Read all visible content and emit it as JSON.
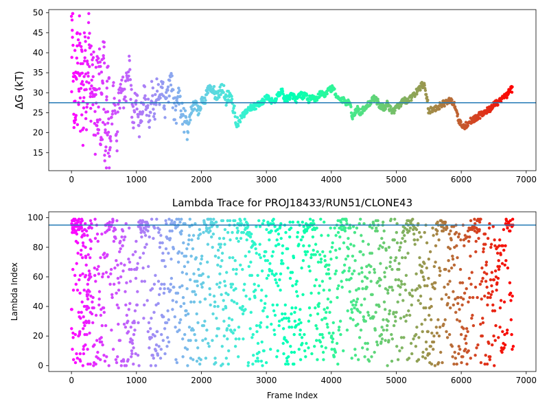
{
  "chart_data": [
    {
      "type": "scatter",
      "title": "",
      "xlabel": "",
      "ylabel": "ΔG (kT)",
      "xlim": [
        -350,
        7150
      ],
      "ylim": [
        10.5,
        50.8
      ],
      "xticks": [
        0,
        1000,
        2000,
        3000,
        4000,
        5000,
        6000,
        7000
      ],
      "yticks": [
        15,
        20,
        25,
        30,
        35,
        40,
        45,
        50
      ],
      "hline": 27.5,
      "grid": false,
      "legend": "none",
      "color_encoding": "frame index on rainbow colormap (red early to violet late)",
      "trace_points": [
        [
          0,
          40
        ],
        [
          20,
          48
        ],
        [
          40,
          20
        ],
        [
          60,
          33
        ],
        [
          80,
          38
        ],
        [
          100,
          30
        ],
        [
          120,
          42
        ],
        [
          140,
          28
        ],
        [
          160,
          33
        ],
        [
          180,
          22
        ],
        [
          200,
          36
        ],
        [
          230,
          30
        ],
        [
          260,
          43
        ],
        [
          290,
          28
        ],
        [
          320,
          34
        ],
        [
          360,
          24
        ],
        [
          400,
          32
        ],
        [
          440,
          29
        ],
        [
          480,
          27
        ],
        [
          500,
          36
        ],
        [
          520,
          15
        ],
        [
          560,
          27
        ],
        [
          600,
          17
        ],
        [
          650,
          32
        ],
        [
          700,
          16
        ],
        [
          720,
          27
        ],
        [
          780,
          33
        ],
        [
          820,
          27
        ],
        [
          860,
          34
        ],
        [
          890,
          36
        ],
        [
          920,
          28
        ],
        [
          960,
          24
        ],
        [
          1000,
          30
        ],
        [
          1040,
          22
        ],
        [
          1080,
          26
        ],
        [
          1120,
          32
        ],
        [
          1160,
          26
        ],
        [
          1200,
          24
        ],
        [
          1240,
          30
        ],
        [
          1280,
          25
        ],
        [
          1320,
          31
        ],
        [
          1360,
          27
        ],
        [
          1400,
          31
        ],
        [
          1440,
          26
        ],
        [
          1480,
          30
        ],
        [
          1540,
          32
        ],
        [
          1580,
          26
        ],
        [
          1620,
          25
        ],
        [
          1660,
          29
        ],
        [
          1700,
          25
        ],
        [
          1740,
          23
        ],
        [
          1780,
          20.5
        ],
        [
          1840,
          25
        ],
        [
          1900,
          27
        ],
        [
          1960,
          25
        ],
        [
          2000,
          28
        ],
        [
          2040,
          28
        ],
        [
          2080,
          29.5
        ],
        [
          2120,
          31
        ],
        [
          2180,
          30.5
        ],
        [
          2240,
          29
        ],
        [
          2300,
          30.5
        ],
        [
          2340,
          31
        ],
        [
          2380,
          28
        ],
        [
          2420,
          30
        ],
        [
          2460,
          28
        ],
        [
          2500,
          26
        ],
        [
          2540,
          22
        ],
        [
          2580,
          23
        ],
        [
          2650,
          24.5
        ],
        [
          2720,
          26
        ],
        [
          2800,
          26.5
        ],
        [
          2880,
          27
        ],
        [
          2960,
          28
        ],
        [
          3000,
          29
        ],
        [
          3060,
          28
        ],
        [
          3120,
          28
        ],
        [
          3180,
          29.5
        ],
        [
          3240,
          30.5
        ],
        [
          3280,
          28.5
        ],
        [
          3340,
          28.5
        ],
        [
          3400,
          29.5
        ],
        [
          3460,
          28
        ],
        [
          3520,
          30
        ],
        [
          3560,
          29
        ],
        [
          3600,
          29.5
        ],
        [
          3650,
          28
        ],
        [
          3700,
          29.5
        ],
        [
          3760,
          28
        ],
        [
          3800,
          29.5
        ],
        [
          3860,
          30
        ],
        [
          3900,
          29.5
        ],
        [
          3950,
          30.5
        ],
        [
          4000,
          31
        ],
        [
          4040,
          31
        ],
        [
          4080,
          29
        ],
        [
          4120,
          28.5
        ],
        [
          4160,
          28
        ],
        [
          4200,
          28
        ],
        [
          4240,
          27.5
        ],
        [
          4280,
          28
        ],
        [
          4320,
          24
        ],
        [
          4360,
          25
        ],
        [
          4400,
          26
        ],
        [
          4450,
          25
        ],
        [
          4500,
          26
        ],
        [
          4550,
          27
        ],
        [
          4600,
          27.5
        ],
        [
          4650,
          28.5
        ],
        [
          4700,
          28
        ],
        [
          4740,
          27
        ],
        [
          4780,
          26.5
        ],
        [
          4820,
          26
        ],
        [
          4860,
          27.5
        ],
        [
          4900,
          26
        ],
        [
          4950,
          25.5
        ],
        [
          5000,
          26
        ],
        [
          5050,
          27
        ],
        [
          5100,
          28
        ],
        [
          5150,
          28
        ],
        [
          5200,
          28.5
        ],
        [
          5250,
          29
        ],
        [
          5300,
          30
        ],
        [
          5350,
          31
        ],
        [
          5400,
          32
        ],
        [
          5440,
          31.5
        ],
        [
          5480,
          28
        ],
        [
          5500,
          25
        ],
        [
          5540,
          26
        ],
        [
          5600,
          26
        ],
        [
          5640,
          26.5
        ],
        [
          5700,
          27
        ],
        [
          5750,
          27.5
        ],
        [
          5800,
          28
        ],
        [
          5850,
          28
        ],
        [
          5880,
          27.5
        ],
        [
          5920,
          26
        ],
        [
          5960,
          23
        ],
        [
          6000,
          22
        ],
        [
          6040,
          21.5
        ],
        [
          6080,
          22
        ],
        [
          6150,
          23
        ],
        [
          6200,
          23.5
        ],
        [
          6250,
          24
        ],
        [
          6300,
          24.5
        ],
        [
          6350,
          25
        ],
        [
          6400,
          25.5
        ],
        [
          6450,
          26
        ],
        [
          6500,
          27
        ],
        [
          6550,
          27.5
        ],
        [
          6600,
          28
        ],
        [
          6650,
          29
        ],
        [
          6700,
          29.5
        ],
        [
          6750,
          30.5
        ],
        [
          6790,
          31
        ]
      ],
      "jitter": [
        [
          0,
          600,
          12
        ],
        [
          600,
          1800,
          3.5
        ],
        [
          1800,
          2600,
          1.5
        ],
        [
          2600,
          6800,
          0.8
        ]
      ]
    },
    {
      "type": "scatter",
      "title": "Lambda Trace for PROJ18433/RUN51/CLONE43",
      "xlabel": "Frame Index",
      "ylabel": "Lambda Index",
      "xlim": [
        -350,
        7150
      ],
      "ylim": [
        -4,
        104
      ],
      "xticks": [
        0,
        1000,
        2000,
        3000,
        4000,
        5000,
        6000,
        7000
      ],
      "yticks": [
        0,
        20,
        40,
        60,
        80,
        100
      ],
      "hline": 95,
      "grid": false,
      "legend": "none",
      "color_encoding": "frame index on rainbow colormap (red early to violet late)",
      "frame_count": 6800
    }
  ]
}
